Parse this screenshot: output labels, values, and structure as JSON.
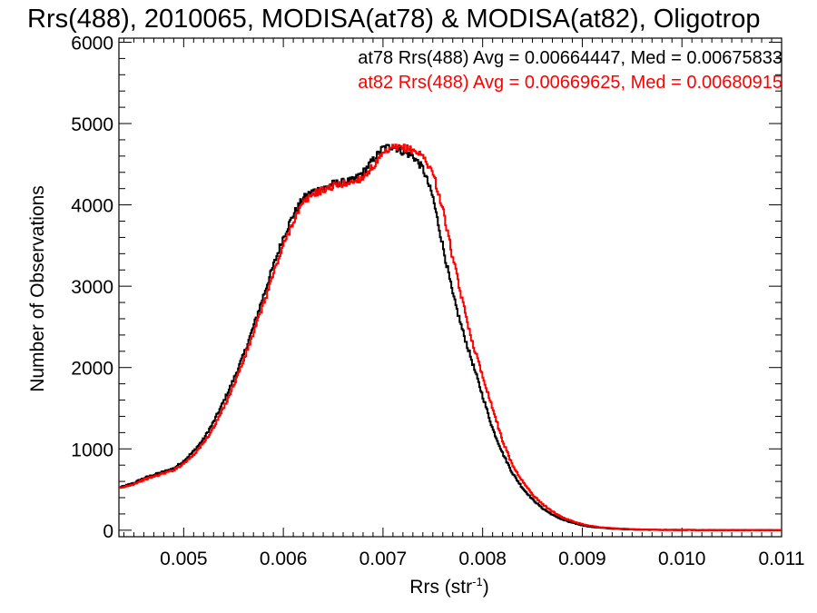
{
  "chart_data": {
    "type": "line",
    "title": "Rrs(488), 2010065, MODISA(at78) & MODISA(at82), Oligotrop",
    "xlabel": "Rrs (str",
    "xlabel_sup": "-1",
    "xlabel_close": ")",
    "ylabel": "Number of Observations",
    "xlim": [
      0.00435,
      0.011
    ],
    "ylim": [
      -80,
      6050
    ],
    "x_ticks": [
      0.005,
      0.006,
      0.007,
      0.008,
      0.009,
      0.01,
      0.011
    ],
    "x_tick_labels": [
      "0.005",
      "0.006",
      "0.007",
      "0.008",
      "0.009",
      "0.010",
      "0.011"
    ],
    "y_ticks": [
      0,
      1000,
      2000,
      3000,
      4000,
      5000,
      6000
    ],
    "y_tick_labels": [
      "0",
      "1000",
      "2000",
      "3000",
      "4000",
      "5000",
      "6000"
    ],
    "grid": false,
    "legend_position": "top-right",
    "annotations": [
      "at78 Rrs(488) Avg = 0.00664447, Med = 0.00675833",
      "at82 Rrs(488) Avg = 0.00669625, Med = 0.00680915"
    ],
    "series": [
      {
        "name": "at78",
        "color": "#000000",
        "x": [
          0.00435,
          0.0045,
          0.0046,
          0.0047,
          0.0048,
          0.0049,
          0.005,
          0.0051,
          0.0052,
          0.0053,
          0.0054,
          0.0055,
          0.0056,
          0.0057,
          0.0058,
          0.0059,
          0.006,
          0.0061,
          0.0062,
          0.0063,
          0.0064,
          0.0065,
          0.0066,
          0.0067,
          0.0068,
          0.0069,
          0.007,
          0.0071,
          0.0072,
          0.0073,
          0.0074,
          0.0075,
          0.0076,
          0.0077,
          0.0078,
          0.0079,
          0.008,
          0.0081,
          0.0082,
          0.0083,
          0.0084,
          0.0085,
          0.0086,
          0.0087,
          0.0088,
          0.0089,
          0.009,
          0.0091,
          0.0092,
          0.0093,
          0.0094,
          0.0095,
          0.0096,
          0.0097,
          0.0098,
          0.01,
          0.0102,
          0.0105,
          0.011
        ],
        "y": [
          520,
          580,
          640,
          680,
          720,
          760,
          850,
          970,
          1120,
          1330,
          1580,
          1850,
          2150,
          2500,
          2880,
          3250,
          3600,
          3880,
          4080,
          4170,
          4200,
          4260,
          4280,
          4300,
          4400,
          4550,
          4700,
          4720,
          4650,
          4600,
          4450,
          4100,
          3500,
          2900,
          2450,
          2050,
          1650,
          1250,
          950,
          700,
          520,
          380,
          270,
          190,
          130,
          90,
          60,
          40,
          28,
          20,
          14,
          10,
          7,
          5,
          4,
          3,
          2,
          1,
          1
        ]
      },
      {
        "name": "at82",
        "color": "#ff0000",
        "x": [
          0.00435,
          0.0045,
          0.0046,
          0.0047,
          0.0048,
          0.0049,
          0.005,
          0.0051,
          0.0052,
          0.0053,
          0.0054,
          0.0055,
          0.0056,
          0.0057,
          0.0058,
          0.0059,
          0.006,
          0.0061,
          0.0062,
          0.0063,
          0.0064,
          0.0065,
          0.0066,
          0.0067,
          0.0068,
          0.0069,
          0.007,
          0.0071,
          0.0072,
          0.0073,
          0.0074,
          0.0075,
          0.0076,
          0.0077,
          0.0078,
          0.0079,
          0.008,
          0.0081,
          0.0082,
          0.0083,
          0.0084,
          0.0085,
          0.0086,
          0.0087,
          0.0088,
          0.0089,
          0.009,
          0.0091,
          0.0092,
          0.0093,
          0.0094,
          0.0095,
          0.0096,
          0.0097,
          0.0098,
          0.01,
          0.0102,
          0.0105,
          0.011
        ],
        "y": [
          510,
          570,
          620,
          660,
          700,
          740,
          820,
          930,
          1070,
          1260,
          1500,
          1780,
          2080,
          2420,
          2780,
          3150,
          3500,
          3800,
          4020,
          4140,
          4180,
          4230,
          4260,
          4280,
          4340,
          4470,
          4620,
          4700,
          4700,
          4680,
          4600,
          4400,
          3950,
          3350,
          2800,
          2300,
          1900,
          1500,
          1100,
          800,
          600,
          440,
          320,
          230,
          160,
          110,
          75,
          50,
          35,
          25,
          18,
          12,
          8,
          6,
          4,
          3,
          2,
          1,
          1
        ]
      }
    ]
  }
}
